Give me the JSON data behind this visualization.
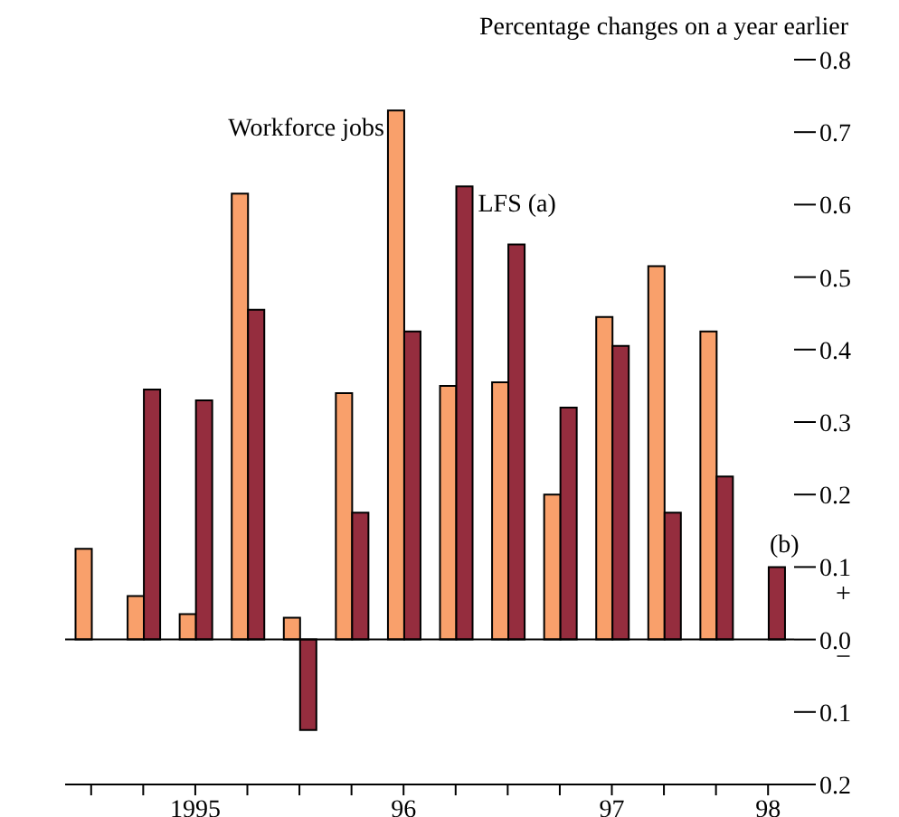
{
  "chart_data": {
    "type": "bar",
    "title": "Percentage changes on a year earlier",
    "categories": [
      null,
      null,
      "1995",
      null,
      null,
      null,
      "96",
      null,
      null,
      null,
      "97",
      null,
      null,
      "98"
    ],
    "series": [
      {
        "name": "Workforce jobs",
        "color": "#f9a06b",
        "values": [
          0.125,
          0.06,
          0.035,
          0.615,
          0.03,
          0.34,
          0.73,
          0.35,
          0.355,
          0.2,
          0.445,
          0.515,
          0.425,
          null
        ]
      },
      {
        "name": "LFS (a)",
        "color": "#952d3e",
        "values": [
          null,
          0.345,
          0.33,
          0.455,
          -0.125,
          0.175,
          0.425,
          0.625,
          0.545,
          0.32,
          0.405,
          0.175,
          0.225,
          0.1
        ]
      }
    ],
    "ylim": [
      -0.2,
      0.8
    ],
    "yticks": [
      {
        "value": -0.2,
        "label": "0.2"
      },
      {
        "value": -0.1,
        "label": "0.1"
      },
      {
        "value": 0,
        "label": "0.0"
      },
      0.1,
      0.2,
      0.3,
      0.4,
      0.5,
      0.6,
      0.7,
      0.8
    ],
    "annotations": [
      {
        "text": "(b)",
        "x": "98",
        "y": 0.1
      },
      "+",
      "−"
    ]
  }
}
